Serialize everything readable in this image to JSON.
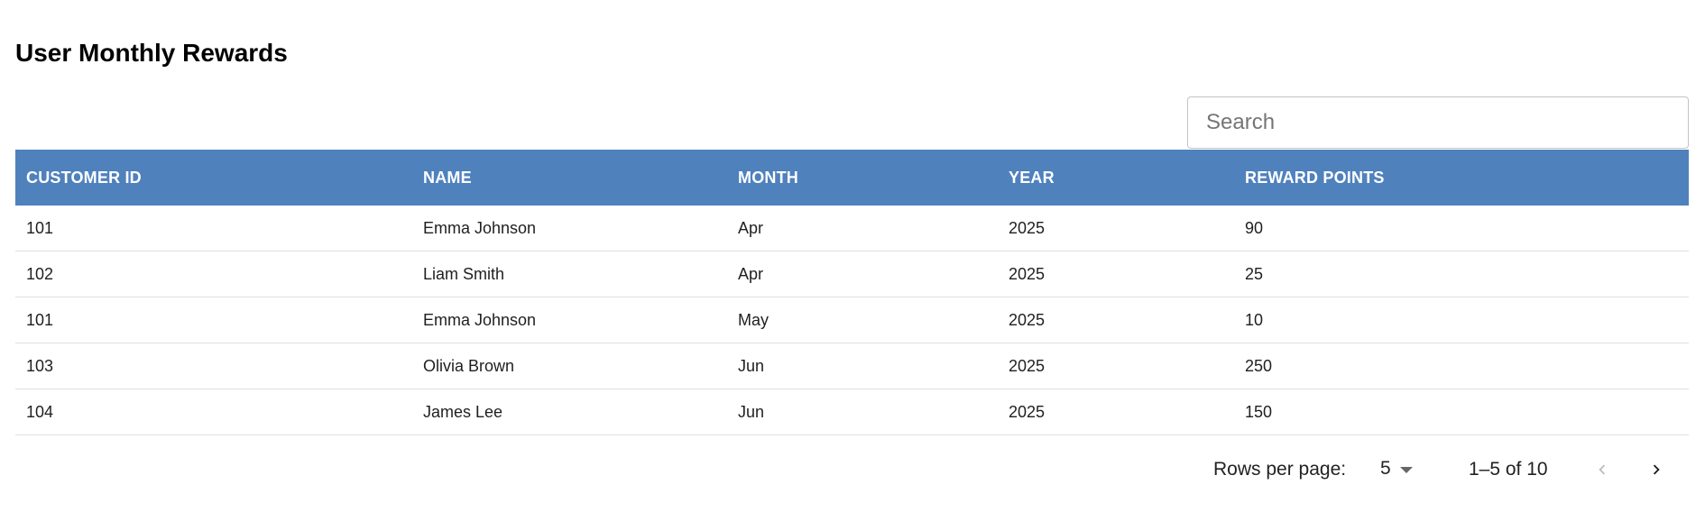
{
  "page": {
    "title": "User Monthly Rewards"
  },
  "search": {
    "placeholder": "Search",
    "value": ""
  },
  "table": {
    "columns": [
      "CUSTOMER ID",
      "NAME",
      "MONTH",
      "YEAR",
      "REWARD POINTS"
    ],
    "rows": [
      [
        "101",
        "Emma Johnson",
        "Apr",
        "2025",
        "90"
      ],
      [
        "102",
        "Liam Smith",
        "Apr",
        "2025",
        "25"
      ],
      [
        "101",
        "Emma Johnson",
        "May",
        "2025",
        "10"
      ],
      [
        "103",
        "Olivia Brown",
        "Jun",
        "2025",
        "250"
      ],
      [
        "104",
        "James Lee",
        "Jun",
        "2025",
        "150"
      ]
    ],
    "header_color": "#4f81bd"
  },
  "pagination": {
    "rows_per_page_label": "Rows per page:",
    "rows_per_page_value": "5",
    "range_text": "1–5 of 10",
    "prev_icon": "chevron-left-icon",
    "next_icon": "chevron-right-icon",
    "prev_disabled": true
  }
}
